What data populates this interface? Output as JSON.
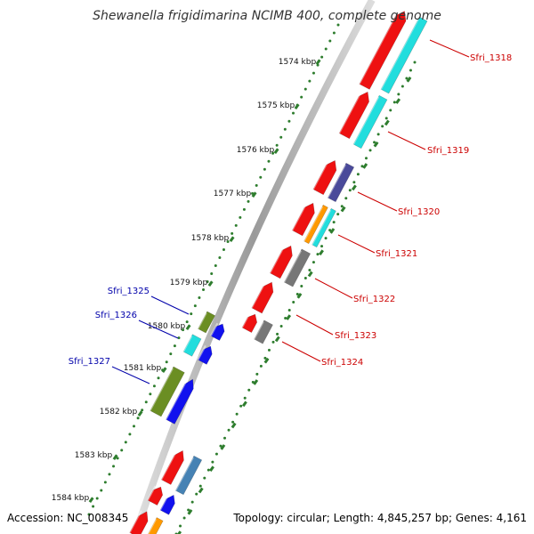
{
  "title": "Shewanella frigidimarina NCIMB 400, complete genome",
  "footer": {
    "accession": "Accession: NC_008345",
    "summary": "Topology: circular; Length: 4,845,257 bp; Genes: 4,161"
  },
  "colors": {
    "forward_label": "#cc0000",
    "reverse_label": "#0000aa",
    "tick": "#2e7d2e",
    "backbone": "#9a9a9a"
  },
  "ticks": [
    {
      "label": "1574 kbp"
    },
    {
      "label": "1575 kbp"
    },
    {
      "label": "1576 kbp"
    },
    {
      "label": "1577 kbp"
    },
    {
      "label": "1578 kbp"
    },
    {
      "label": "1579 kbp"
    },
    {
      "label": "1580 kbp"
    },
    {
      "label": "1581 kbp"
    },
    {
      "label": "1582 kbp"
    },
    {
      "label": "1583 kbp"
    },
    {
      "label": "1584 kbp"
    }
  ],
  "gene_labels": {
    "forward": [
      "Sfri_1318",
      "Sfri_1319",
      "Sfri_1320",
      "Sfri_1321",
      "Sfri_1322",
      "Sfri_1323",
      "Sfri_1324"
    ],
    "reverse": [
      "Sfri_1325",
      "Sfri_1326",
      "Sfri_1327"
    ]
  },
  "features": {
    "cds_forward": "#ee1111",
    "cds_reverse": "#1111ee",
    "cyan": "#22dddd",
    "slate": "#4a4a9a",
    "orange": "#ff9900",
    "gray": "#777777",
    "olive": "#6b8e23",
    "steel": "#4682b4"
  }
}
